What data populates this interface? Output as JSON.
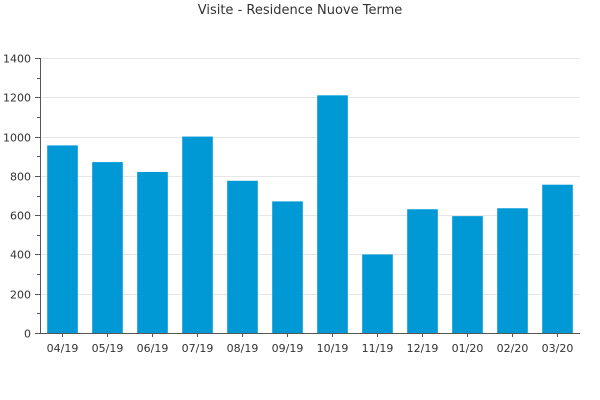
{
  "chart_data": {
    "type": "bar",
    "title": "Visite - Residence Nuove Terme",
    "xlabel": "",
    "ylabel": "",
    "categories": [
      "04/19",
      "05/19",
      "06/19",
      "07/19",
      "08/19",
      "09/19",
      "10/19",
      "11/19",
      "12/19",
      "01/20",
      "02/20",
      "03/20"
    ],
    "values": [
      955,
      870,
      820,
      1000,
      775,
      670,
      1210,
      400,
      630,
      595,
      635,
      755
    ],
    "ylim": [
      0,
      1400
    ],
    "yticks": [
      0,
      200,
      400,
      600,
      800,
      1000,
      1200,
      1400
    ],
    "grid": true,
    "legend": "none",
    "colors": {
      "bar": "#0099d6",
      "grid": "#e6e6e6",
      "axis": "#555555",
      "text": "#333333"
    }
  }
}
